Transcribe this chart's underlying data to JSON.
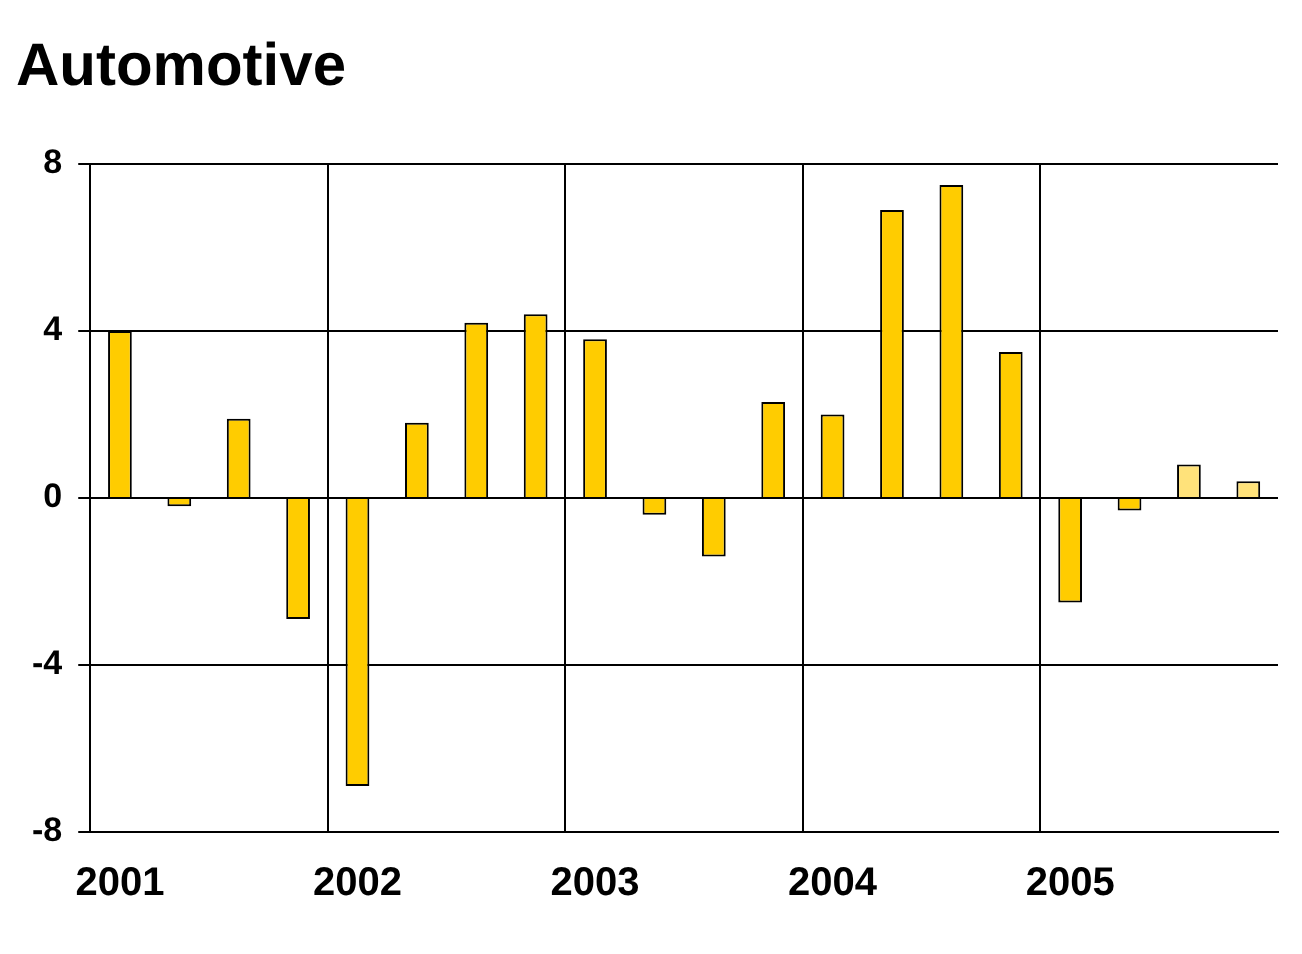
{
  "chart_data": {
    "type": "bar",
    "title": "Automotive",
    "categories": [
      "2001",
      null,
      null,
      null,
      "2002",
      null,
      null,
      null,
      "2003",
      null,
      null,
      null,
      "2004",
      null,
      null,
      null,
      "2005",
      null,
      null,
      null
    ],
    "values": [
      4.0,
      -0.2,
      1.9,
      -2.9,
      -6.9,
      1.8,
      4.2,
      4.4,
      3.8,
      -0.4,
      -1.4,
      2.3,
      2.0,
      6.9,
      7.5,
      3.5,
      -2.5,
      -0.3,
      0.8,
      0.4
    ],
    "colors": [
      "#ffcc00",
      "#ffcc00",
      "#ffcc00",
      "#ffcc00",
      "#ffcc00",
      "#ffcc00",
      "#ffcc00",
      "#ffcc00",
      "#ffcc00",
      "#ffcc00",
      "#ffcc00",
      "#ffcc00",
      "#ffcc00",
      "#ffcc00",
      "#ffcc00",
      "#ffcc00",
      "#ffcc00",
      "#ffcc00",
      "#ffe27a",
      "#ffe27a"
    ],
    "ylim": [
      -8,
      8
    ],
    "yticks": [
      -8,
      -4,
      0,
      4,
      8
    ],
    "grid": true,
    "legend": false
  }
}
